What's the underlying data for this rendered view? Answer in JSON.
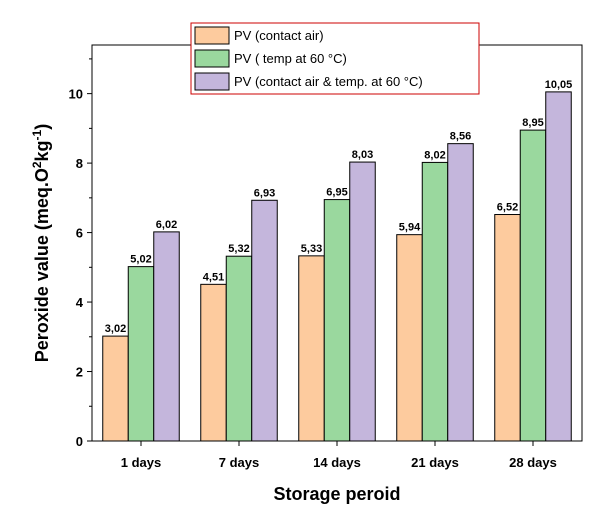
{
  "chart_data": {
    "type": "bar",
    "categories": [
      "1 days",
      "7 days",
      "14 days",
      "21 days",
      "28 days"
    ],
    "series": [
      {
        "name": "PV (contact air)",
        "color": "#FDCB9E",
        "values": [
          3.02,
          4.51,
          5.33,
          5.94,
          6.52
        ],
        "labels": [
          "3,02",
          "4,51",
          "5,33",
          "5,94",
          "6,52"
        ]
      },
      {
        "name": "PV ( temp at 60 °C)",
        "color": "#9AD89E",
        "values": [
          5.02,
          5.32,
          6.95,
          8.02,
          8.95
        ],
        "labels": [
          "5,02",
          "5,32",
          "6,95",
          "8,02",
          "8,95"
        ]
      },
      {
        "name": "PV (contact air & temp. at 60 °C)",
        "color": "#C4B6DC",
        "values": [
          6.02,
          6.93,
          8.03,
          8.56,
          10.05
        ],
        "labels": [
          "6,02",
          "6,93",
          "8,03",
          "8,56",
          "10,05"
        ]
      }
    ],
    "xlabel": "Storage peroid",
    "ylabel_prefix": "Peroxide value  (meq.O",
    "ylabel_sup1": "2",
    "ylabel_mid": "kg",
    "ylabel_sup2": "-1",
    "ylabel_suffix": ")",
    "ylim": [
      0,
      11.4
    ],
    "yticks": [
      0,
      2,
      4,
      6,
      8,
      10
    ],
    "ytick_labels": [
      "0",
      "2",
      "4",
      "6",
      "8",
      "10"
    ],
    "legend_position": "top-center",
    "legend_border_color": "#CC0000",
    "grid": false
  }
}
